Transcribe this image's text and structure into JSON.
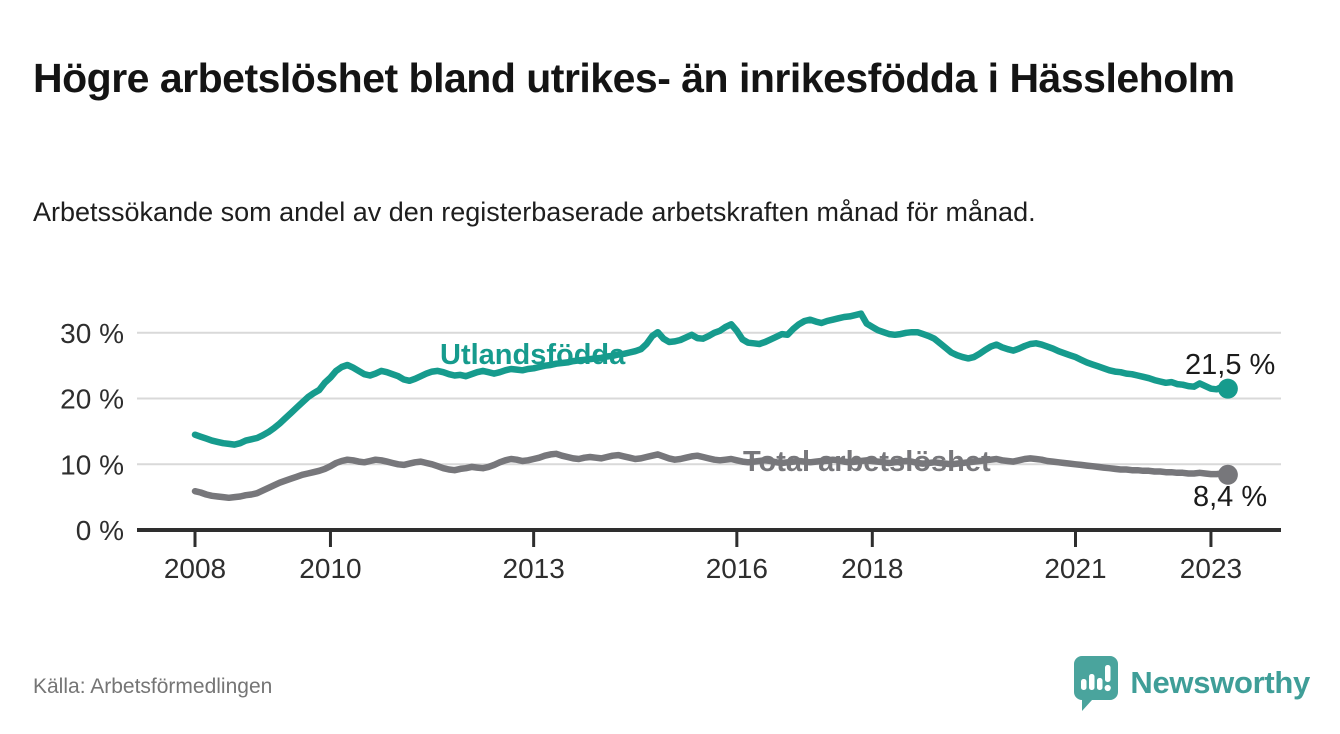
{
  "header": {
    "title": "Högre arbetslöshet bland utrikes- än inrikesfödda i Hässleholm",
    "subtitle": "Arbetssökande som andel av den registerbaserade arbetskraften månad för månad."
  },
  "footer": {
    "source": "Källa: Arbetsförmedlingen",
    "brand": "Newsworthy",
    "brand_color": "#3f9e98",
    "logo_icon": "newsworthy-speech-bubble-bar-chart"
  },
  "chart_data": {
    "type": "line",
    "title": "Högre arbetslöshet bland utrikes- än inrikesfödda i Hässleholm",
    "subtitle": "Arbetssökande som andel av den registerbaserade arbetskraften månad för månad.",
    "source": "Källa: Arbetsförmedlingen",
    "unit": "%",
    "frequency": "monthly",
    "period_start": "2008-01",
    "period_end": "2023-04",
    "x_axis": {
      "tick_years": [
        2008,
        2010,
        2013,
        2016,
        2018,
        2021,
        2023
      ]
    },
    "y_axis": {
      "range": [
        0,
        34
      ],
      "grid": true,
      "ticks": [
        {
          "value": 0,
          "label": "0 %"
        },
        {
          "value": 10,
          "label": "10 %"
        },
        {
          "value": 20,
          "label": "20 %"
        },
        {
          "value": 30,
          "label": "30 %"
        }
      ]
    },
    "legend_position": "inline-labels",
    "style": {
      "grid_color": "#d9d9d9",
      "axis_color": "#2e2e2e",
      "background": "#ffffff"
    },
    "series": [
      {
        "name": "Utlandsfödda",
        "color": "#169b8d",
        "end_value": 21.5,
        "end_label": "21,5 %",
        "start_year": 2008,
        "values": [
          14.5,
          14.2,
          13.9,
          13.6,
          13.4,
          13.2,
          13.1,
          13.0,
          13.2,
          13.6,
          13.8,
          14.0,
          14.4,
          14.9,
          15.5,
          16.2,
          17.0,
          17.8,
          18.6,
          19.4,
          20.2,
          20.8,
          21.3,
          22.4,
          23.2,
          24.2,
          24.8,
          25.1,
          24.7,
          24.2,
          23.7,
          23.5,
          23.8,
          24.2,
          24.0,
          23.7,
          23.4,
          22.9,
          22.7,
          23.0,
          23.4,
          23.8,
          24.1,
          24.2,
          24.0,
          23.7,
          23.5,
          23.6,
          23.4,
          23.7,
          24.0,
          24.2,
          24.0,
          23.8,
          24.0,
          24.3,
          24.5,
          24.4,
          24.3,
          24.5,
          24.6,
          24.8,
          25.0,
          25.1,
          25.3,
          25.4,
          25.5,
          25.7,
          25.8,
          25.9,
          26.0,
          26.1,
          26.2,
          26.4,
          26.5,
          26.7,
          26.8,
          27.0,
          27.2,
          27.5,
          28.3,
          29.5,
          30.1,
          29.1,
          28.6,
          28.7,
          28.9,
          29.3,
          29.7,
          29.2,
          29.1,
          29.5,
          30.0,
          30.3,
          30.9,
          31.3,
          30.3,
          29.0,
          28.5,
          28.4,
          28.3,
          28.6,
          29.0,
          29.4,
          29.8,
          29.7,
          30.6,
          31.3,
          31.8,
          32.0,
          31.7,
          31.5,
          31.8,
          32.0,
          32.2,
          32.4,
          32.5,
          32.7,
          32.9,
          31.4,
          30.9,
          30.4,
          30.1,
          29.8,
          29.7,
          29.8,
          30.0,
          30.1,
          30.1,
          29.8,
          29.5,
          29.1,
          28.4,
          27.7,
          27.0,
          26.6,
          26.3,
          26.1,
          26.3,
          26.8,
          27.4,
          27.9,
          28.2,
          27.8,
          27.5,
          27.3,
          27.6,
          28.0,
          28.3,
          28.4,
          28.2,
          27.9,
          27.6,
          27.2,
          26.9,
          26.6,
          26.3,
          25.9,
          25.5,
          25.2,
          24.9,
          24.6,
          24.3,
          24.1,
          24.0,
          23.8,
          23.7,
          23.5,
          23.3,
          23.1,
          22.8,
          22.6,
          22.4,
          22.5,
          22.2,
          22.1,
          21.9,
          21.8,
          22.3,
          21.9,
          21.5,
          21.4,
          21.8,
          21.5
        ]
      },
      {
        "name": "Total arbetslöshet",
        "color": "#77777b",
        "end_value": 8.4,
        "end_label": "8,4 %",
        "start_year": 2008,
        "values": [
          5.9,
          5.7,
          5.4,
          5.2,
          5.1,
          5.0,
          4.9,
          5.0,
          5.1,
          5.3,
          5.4,
          5.6,
          6.0,
          6.4,
          6.8,
          7.2,
          7.5,
          7.8,
          8.1,
          8.4,
          8.6,
          8.8,
          9.0,
          9.3,
          9.7,
          10.2,
          10.5,
          10.7,
          10.6,
          10.4,
          10.3,
          10.5,
          10.7,
          10.6,
          10.4,
          10.2,
          10.0,
          9.9,
          10.1,
          10.3,
          10.4,
          10.2,
          10.0,
          9.7,
          9.4,
          9.2,
          9.1,
          9.3,
          9.4,
          9.6,
          9.5,
          9.4,
          9.6,
          9.9,
          10.3,
          10.6,
          10.8,
          10.7,
          10.5,
          10.6,
          10.8,
          11.0,
          11.3,
          11.5,
          11.6,
          11.3,
          11.1,
          10.9,
          10.8,
          11.0,
          11.1,
          11.0,
          10.9,
          11.1,
          11.3,
          11.4,
          11.2,
          11.0,
          10.8,
          10.9,
          11.1,
          11.3,
          11.5,
          11.2,
          10.9,
          10.7,
          10.8,
          11.0,
          11.2,
          11.3,
          11.1,
          10.9,
          10.7,
          10.6,
          10.7,
          10.8,
          10.6,
          10.4,
          10.3,
          10.4,
          10.5,
          10.6,
          10.5,
          10.3,
          10.2,
          10.3,
          10.4,
          10.5,
          10.4,
          10.3,
          10.4,
          10.5,
          10.6,
          10.7,
          10.6,
          10.4,
          10.3,
          10.4,
          10.5,
          10.6,
          10.5,
          10.4,
          10.3,
          10.2,
          10.3,
          10.4,
          10.5,
          10.4,
          10.2,
          10.1,
          10.2,
          10.3,
          10.2,
          10.1,
          10.0,
          10.1,
          10.2,
          10.3,
          10.4,
          10.5,
          10.6,
          10.7,
          10.8,
          10.6,
          10.5,
          10.4,
          10.6,
          10.8,
          10.9,
          10.8,
          10.7,
          10.5,
          10.4,
          10.3,
          10.2,
          10.1,
          10.0,
          9.9,
          9.8,
          9.7,
          9.6,
          9.5,
          9.4,
          9.3,
          9.2,
          9.2,
          9.1,
          9.1,
          9.0,
          9.0,
          8.9,
          8.9,
          8.8,
          8.8,
          8.7,
          8.7,
          8.6,
          8.6,
          8.7,
          8.6,
          8.5,
          8.5,
          8.6,
          8.4
        ]
      }
    ]
  }
}
